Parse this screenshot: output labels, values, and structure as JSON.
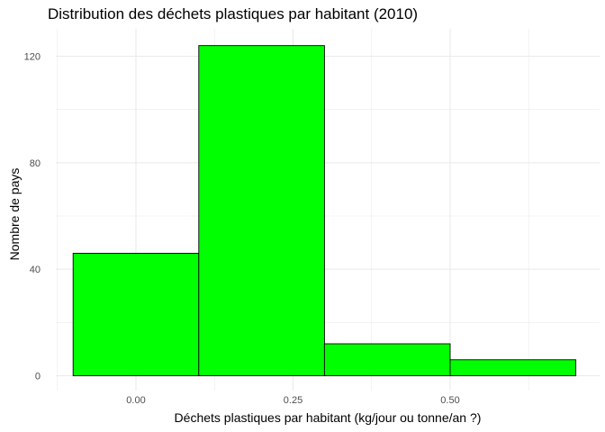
{
  "chart_data": {
    "type": "bar",
    "title": "Distribution des déchets plastiques par habitant (2010)",
    "xlabel": "Déchets plastiques par habitant (kg/jour ou tonne/an ?)",
    "ylabel": "Nombre de pays",
    "bins": [
      {
        "x0": -0.1,
        "x1": 0.1,
        "count": 46
      },
      {
        "x0": 0.1,
        "x1": 0.3,
        "count": 124
      },
      {
        "x0": 0.3,
        "x1": 0.5,
        "count": 12
      },
      {
        "x0": 0.5,
        "x1": 0.7,
        "count": 6
      }
    ],
    "xlim": [
      -0.1,
      0.7
    ],
    "ylim": [
      0,
      130
    ],
    "x_ticks": [
      {
        "value": 0.0,
        "label": "0.00"
      },
      {
        "value": 0.25,
        "label": "0.25"
      },
      {
        "value": 0.5,
        "label": "0.50"
      }
    ],
    "y_ticks": [
      {
        "value": 0,
        "label": "0"
      },
      {
        "value": 40,
        "label": "40"
      },
      {
        "value": 80,
        "label": "80"
      },
      {
        "value": 120,
        "label": "120"
      }
    ],
    "bar_fill": "#00FF00",
    "bar_stroke": "#000000",
    "grid_color": "#EBEBEB",
    "grid": true,
    "legend": "none"
  }
}
